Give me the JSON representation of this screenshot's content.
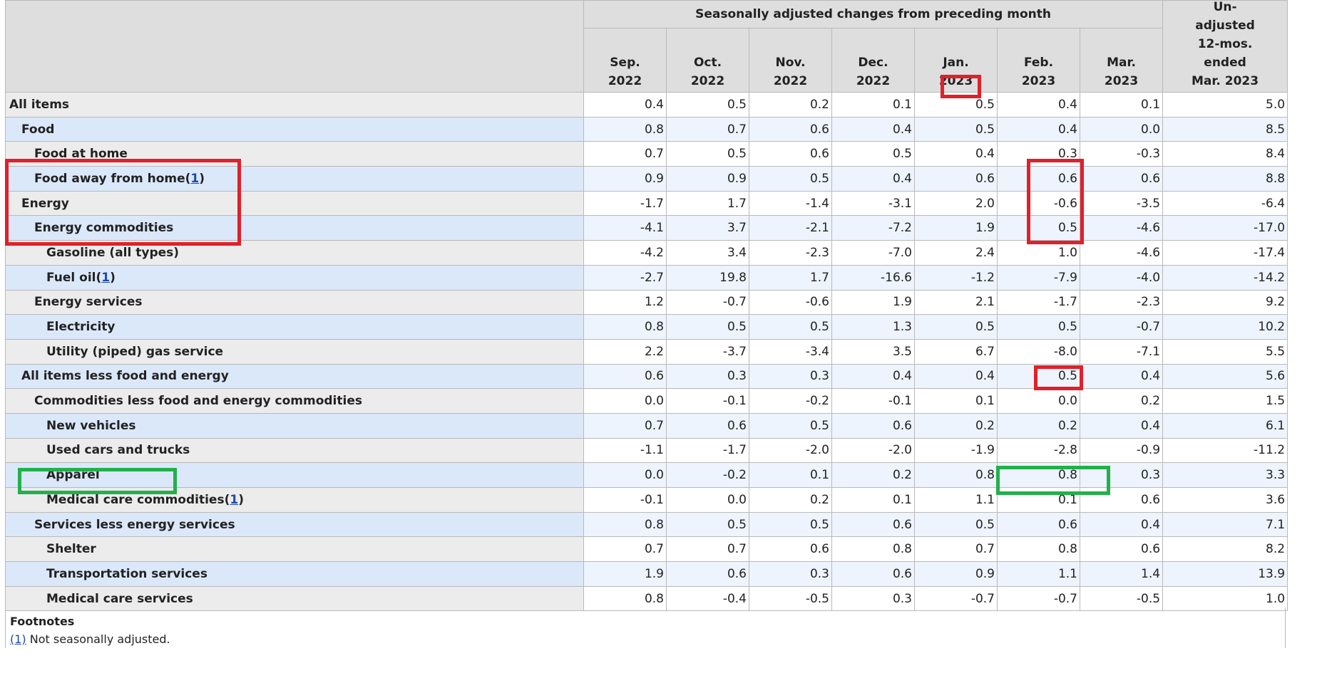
{
  "header": {
    "group_label": "Seasonally adjusted changes from preceding month",
    "months": [
      {
        "m": "Sep.",
        "y": "2022"
      },
      {
        "m": "Oct.",
        "y": "2022"
      },
      {
        "m": "Nov.",
        "y": "2022"
      },
      {
        "m": "Dec.",
        "y": "2022"
      },
      {
        "m": "Jan.",
        "y": "2023"
      },
      {
        "m": "Feb.",
        "y": "2023"
      },
      {
        "m": "Mar.",
        "y": "2023"
      }
    ],
    "unadjusted_lines": [
      "Un-",
      "adjusted",
      "12-mos.",
      "ended",
      "Mar. 2023"
    ]
  },
  "rows": [
    {
      "label": "All items",
      "note": "",
      "values": [
        "0.4",
        "0.5",
        "0.2",
        "0.1",
        "0.5",
        "0.4",
        "0.1",
        "5.0"
      ]
    },
    {
      "label": "Food",
      "note": "",
      "values": [
        "0.8",
        "0.7",
        "0.6",
        "0.4",
        "0.5",
        "0.4",
        "0.0",
        "8.5"
      ]
    },
    {
      "label": "Food at home",
      "note": "",
      "values": [
        "0.7",
        "0.5",
        "0.6",
        "0.5",
        "0.4",
        "0.3",
        "-0.3",
        "8.4"
      ]
    },
    {
      "label": "Food away from home",
      "note": "1",
      "values": [
        "0.9",
        "0.9",
        "0.5",
        "0.4",
        "0.6",
        "0.6",
        "0.6",
        "8.8"
      ]
    },
    {
      "label": "Energy",
      "note": "",
      "values": [
        "-1.7",
        "1.7",
        "-1.4",
        "-3.1",
        "2.0",
        "-0.6",
        "-3.5",
        "-6.4"
      ]
    },
    {
      "label": "Energy commodities",
      "note": "",
      "values": [
        "-4.1",
        "3.7",
        "-2.1",
        "-7.2",
        "1.9",
        "0.5",
        "-4.6",
        "-17.0"
      ]
    },
    {
      "label": "Gasoline (all types)",
      "note": "",
      "values": [
        "-4.2",
        "3.4",
        "-2.3",
        "-7.0",
        "2.4",
        "1.0",
        "-4.6",
        "-17.4"
      ]
    },
    {
      "label": "Fuel oil",
      "note": "1",
      "values": [
        "-2.7",
        "19.8",
        "1.7",
        "-16.6",
        "-1.2",
        "-7.9",
        "-4.0",
        "-14.2"
      ]
    },
    {
      "label": "Energy services",
      "note": "",
      "values": [
        "1.2",
        "-0.7",
        "-0.6",
        "1.9",
        "2.1",
        "-1.7",
        "-2.3",
        "9.2"
      ]
    },
    {
      "label": "Electricity",
      "note": "",
      "values": [
        "0.8",
        "0.5",
        "0.5",
        "1.3",
        "0.5",
        "0.5",
        "-0.7",
        "10.2"
      ]
    },
    {
      "label": "Utility (piped) gas service",
      "note": "",
      "values": [
        "2.2",
        "-3.7",
        "-3.4",
        "3.5",
        "6.7",
        "-8.0",
        "-7.1",
        "5.5"
      ]
    },
    {
      "label": "All items less food and energy",
      "note": "",
      "values": [
        "0.6",
        "0.3",
        "0.3",
        "0.4",
        "0.4",
        "0.5",
        "0.4",
        "5.6"
      ]
    },
    {
      "label": "Commodities less food and energy commodities",
      "note": "",
      "values": [
        "0.0",
        "-0.1",
        "-0.2",
        "-0.1",
        "0.1",
        "0.0",
        "0.2",
        "1.5"
      ]
    },
    {
      "label": "New vehicles",
      "note": "",
      "values": [
        "0.7",
        "0.6",
        "0.5",
        "0.6",
        "0.2",
        "0.2",
        "0.4",
        "6.1"
      ]
    },
    {
      "label": "Used cars and trucks",
      "note": "",
      "values": [
        "-1.1",
        "-1.7",
        "-2.0",
        "-2.0",
        "-1.9",
        "-2.8",
        "-0.9",
        "-11.2"
      ]
    },
    {
      "label": "Apparel",
      "note": "",
      "values": [
        "0.0",
        "-0.2",
        "0.1",
        "0.2",
        "0.8",
        "0.8",
        "0.3",
        "3.3"
      ]
    },
    {
      "label": "Medical care commodities",
      "note": "1",
      "values": [
        "-0.1",
        "0.0",
        "0.2",
        "0.1",
        "1.1",
        "0.1",
        "0.6",
        "3.6"
      ]
    },
    {
      "label": "Services less energy services",
      "note": "",
      "values": [
        "0.8",
        "0.5",
        "0.5",
        "0.6",
        "0.5",
        "0.6",
        "0.4",
        "7.1"
      ]
    },
    {
      "label": "Shelter",
      "note": "",
      "values": [
        "0.7",
        "0.7",
        "0.6",
        "0.8",
        "0.7",
        "0.8",
        "0.6",
        "8.2"
      ]
    },
    {
      "label": "Transportation services",
      "note": "",
      "values": [
        "1.9",
        "0.6",
        "0.3",
        "0.6",
        "0.9",
        "1.1",
        "1.4",
        "13.9"
      ]
    },
    {
      "label": "Medical care services",
      "note": "",
      "values": [
        "0.8",
        "-0.4",
        "-0.5",
        "0.3",
        "-0.7",
        "-0.7",
        "-0.5",
        "1.0"
      ]
    }
  ],
  "footnotes": {
    "title": "Footnotes",
    "marker": "(1)",
    "text": " Not seasonally adjusted."
  },
  "colors": {
    "highlight_red": "#e0202a",
    "highlight_green": "#22b04b",
    "header_bg": "#dedede",
    "row_alt_bg": "#dbe8fa"
  }
}
